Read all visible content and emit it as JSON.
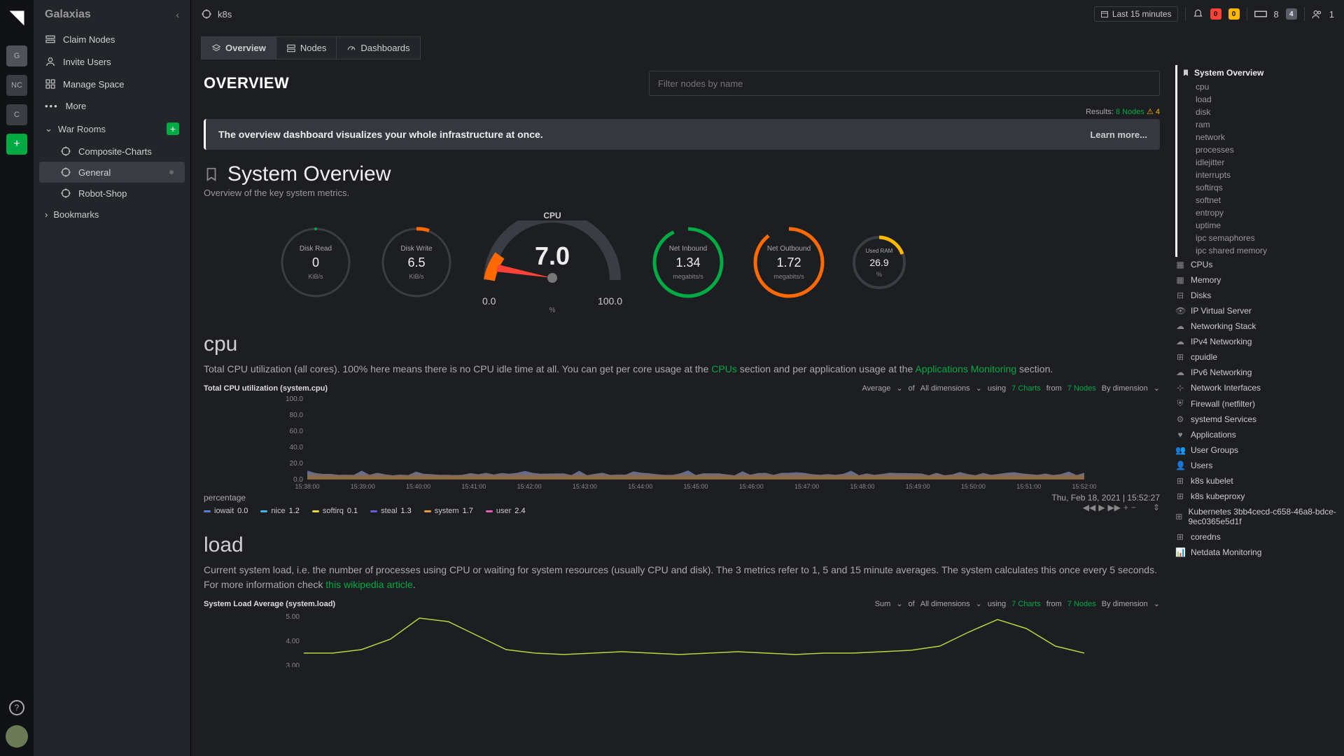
{
  "colors": {
    "bg": "#1c1e22",
    "panel": "#22252a",
    "accent": "#00ab44",
    "red": "#ff4136",
    "orange": "#ffb700",
    "border": "#3a3d44",
    "text_dim": "#9a9a9a"
  },
  "rail": {
    "workspaces": [
      {
        "label": "G",
        "active": true
      },
      {
        "label": "NC",
        "active": false
      },
      {
        "label": "C",
        "active": false
      }
    ]
  },
  "sidebar": {
    "title": "Galaxias",
    "menu": [
      {
        "label": "Claim Nodes"
      },
      {
        "label": "Invite Users"
      },
      {
        "label": "Manage Space"
      },
      {
        "label": "More"
      }
    ],
    "section_war_rooms": "War Rooms",
    "war_rooms": [
      {
        "label": "Composite-Charts",
        "active": false
      },
      {
        "label": "General",
        "active": true
      },
      {
        "label": "Robot-Shop",
        "active": false
      }
    ],
    "section_bookmarks": "Bookmarks"
  },
  "topbar": {
    "crumb": "k8s",
    "time_range": "Last 15 minutes",
    "alerts_red": "0",
    "alerts_orange": "0",
    "nodes_total": "8",
    "nodes_badge": "4",
    "users": "1"
  },
  "tabs": [
    {
      "label": "Overview",
      "active": true
    },
    {
      "label": "Nodes",
      "active": false
    },
    {
      "label": "Dashboards",
      "active": false
    }
  ],
  "page": {
    "heading": "OVERVIEW",
    "filter_placeholder": "Filter nodes by name",
    "results_prefix": "Results:",
    "results_nodes": "8 Nodes",
    "results_warn": "4",
    "banner_text": "The overview dashboard visualizes your whole infrastructure at once.",
    "banner_learn": "Learn more..."
  },
  "system_overview": {
    "title": "System Overview",
    "subtitle": "Overview of the key system metrics.",
    "gauges": {
      "disk_read": {
        "label": "Disk Read",
        "value": "0",
        "unit": "KiB/s",
        "ring_color": "#3a3d44",
        "tick_color": "#00ab44"
      },
      "disk_write": {
        "label": "Disk Write",
        "value": "6.5",
        "unit": "KiB/s",
        "ring_color": "#3a3d44",
        "tick_color": "#ff6a00"
      },
      "cpu": {
        "label": "CPU",
        "value": "7.0",
        "min": "0.0",
        "max": "100.0",
        "unit": "%",
        "needle_color": "#ff4136"
      },
      "net_in": {
        "label": "Net Inbound",
        "value": "1.34",
        "unit": "megabits/s",
        "ring_color": "#00ab44"
      },
      "net_out": {
        "label": "Net Outbound",
        "value": "1.72",
        "unit": "megabits/s",
        "ring_color": "#ff6a00"
      },
      "used_ram": {
        "label": "Used RAM",
        "value": "26.9",
        "unit": "%",
        "ring_color": "#ffb700"
      }
    }
  },
  "cpu_section": {
    "heading": "cpu",
    "desc_pre": "Total CPU utilization (all cores). 100% here means there is no CPU idle time at all. You can get per core usage at the ",
    "desc_link1": "CPUs",
    "desc_mid": " section and per application usage at the ",
    "desc_link2": "Applications Monitoring",
    "desc_post": " section.",
    "chart_title": "Total CPU utilization (system.cpu)",
    "agg": "Average",
    "agg_of": "of",
    "dims": "All dimensions",
    "using": "using",
    "charts_n": "7 Charts",
    "from": "from",
    "nodes_n": "7 Nodes",
    "by_dim": "By dimension",
    "y_ticks": [
      "100.0",
      "80.0",
      "60.0",
      "40.0",
      "20.0",
      "0.0"
    ],
    "x_ticks": [
      "15:38:00",
      "15:39:00",
      "15:40:00",
      "15:41:00",
      "15:42:00",
      "15:43:00",
      "15:44:00",
      "15:45:00",
      "15:46:00",
      "15:47:00",
      "15:48:00",
      "15:49:00",
      "15:50:00",
      "15:51:00",
      "15:52:00"
    ],
    "ylabel": "percentage",
    "timestamp": "Thu, Feb 18, 2021 | 15:52:27",
    "legend": [
      {
        "name": "iowait",
        "val": "0.0",
        "color": "#5b7fd7"
      },
      {
        "name": "nice",
        "val": "1.2",
        "color": "#3fb8e7"
      },
      {
        "name": "softirq",
        "val": "0.1",
        "color": "#e7d43f"
      },
      {
        "name": "steal",
        "val": "1.3",
        "color": "#6b5bd7"
      },
      {
        "name": "system",
        "val": "1.7",
        "color": "#e79a3f"
      },
      {
        "name": "user",
        "val": "2.4",
        "color": "#e75bbf"
      }
    ]
  },
  "load_section": {
    "heading": "load",
    "desc_pre": "Current system load, i.e. the number of processes using CPU or waiting for system resources (usually CPU and disk). The 3 metrics refer to 1, 5 and 15 minute averages. The system calculates this once every 5 seconds. For more information check ",
    "desc_link": "this wikipedia article",
    "chart_title": "System Load Average (system.load)",
    "agg": "Sum",
    "y_ticks": [
      "5.00",
      "4.00",
      "3.00"
    ],
    "line_color": "#b7d63f"
  },
  "toc": {
    "system_overview": "System Overview",
    "so_children": [
      "cpu",
      "load",
      "disk",
      "ram",
      "network",
      "processes",
      "idlejitter",
      "interrupts",
      "softirqs",
      "softnet",
      "entropy",
      "uptime",
      "ipc semaphores",
      "ipc shared memory"
    ],
    "sections": [
      "CPUs",
      "Memory",
      "Disks",
      "IP Virtual Server",
      "Networking Stack",
      "IPv4 Networking",
      "cpuidle",
      "IPv6 Networking",
      "Network Interfaces",
      "Firewall (netfilter)",
      "systemd Services",
      "Applications",
      "User Groups",
      "Users",
      "k8s kubelet",
      "k8s kubeproxy",
      "Kubernetes 3bb4cecd-c658-46a8-bdce-9ec0365e5d1f",
      "coredns",
      "Netdata Monitoring"
    ]
  }
}
